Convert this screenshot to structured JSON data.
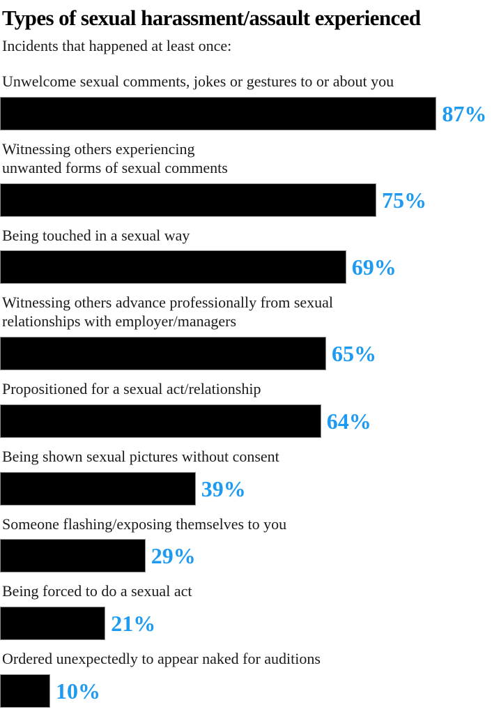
{
  "page": {
    "title": "Types of sexual harassment/assault experienced",
    "subtitle": "Incidents that happened at least once:"
  },
  "colors": {
    "bar_fill": "#000000",
    "bar_border": "#8f8f8f",
    "value_label": "#1e9bf0",
    "title_text": "#000000",
    "label_text": "#1a1a1a",
    "background": "#ffffff"
  },
  "chart_data": {
    "type": "bar",
    "orientation": "horizontal",
    "title": "Types of sexual harassment/assault experienced",
    "subtitle": "Incidents that happened at least once:",
    "unit": "percent",
    "xlim": [
      0,
      100
    ],
    "grid": false,
    "legend": false,
    "value_label_position": "right-of-bar",
    "categories": [
      "Unwelcome sexual comments, jokes or gestures to or about you",
      "Witnessing others experiencing unwanted forms of sexual comments",
      "Being touched in a sexual way",
      "Witnessing others advance professionally from sexual relationships with employer/managers",
      "Propositioned for a sexual act/relationship",
      "Being shown sexual pictures without consent",
      "Someone flashing/exposing themselves to you",
      "Being forced to do a sexual act",
      "Ordered unexpectedly to appear naked for auditions"
    ],
    "values": [
      87,
      75,
      69,
      65,
      64,
      39,
      29,
      21,
      10
    ],
    "rows": [
      {
        "label": "Unwelcome sexual comments, jokes or gestures to or about you",
        "value": 87,
        "value_label": "87%"
      },
      {
        "label": "Witnessing others experiencing\nunwanted forms of sexual comments",
        "value": 75,
        "value_label": "75%"
      },
      {
        "label": "Being touched in a sexual way",
        "value": 69,
        "value_label": "69%"
      },
      {
        "label": "Witnessing others advance professionally from sexual\nrelationships with employer/managers",
        "value": 65,
        "value_label": "65%"
      },
      {
        "label": "Propositioned for a sexual act/relationship",
        "value": 64,
        "value_label": "64%"
      },
      {
        "label": "Being shown sexual pictures without consent",
        "value": 39,
        "value_label": "39%"
      },
      {
        "label": "Someone flashing/exposing themselves to you",
        "value": 29,
        "value_label": "29%"
      },
      {
        "label": "Being forced to do a sexual act",
        "value": 21,
        "value_label": "21%"
      },
      {
        "label": "Ordered unexpectedly to appear naked for auditions",
        "value": 10,
        "value_label": "10%"
      }
    ]
  }
}
